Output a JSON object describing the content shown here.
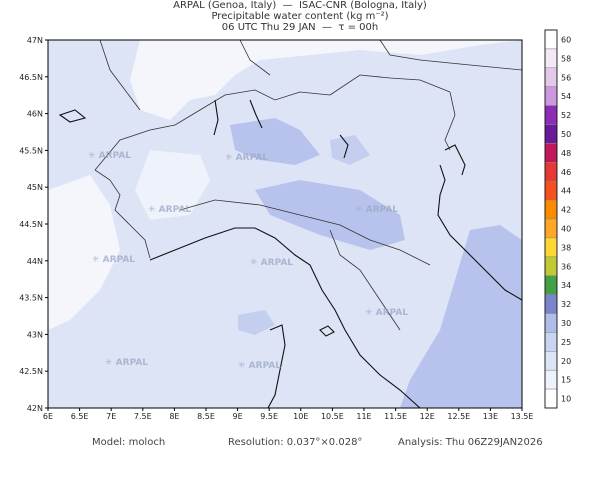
{
  "header": {
    "line1": "ARPAL (Genoa, Italy)  —  ISAC-CNR (Bologna, Italy)",
    "line2": "Precipitable water content (kg m⁻²)",
    "line3": "06 UTC Thu 29 JAN  —  τ = 00h"
  },
  "map": {
    "lat_labels": [
      "47N",
      "46.5N",
      "46N",
      "45.5N",
      "45N",
      "44.5N",
      "44N",
      "43.5N",
      "43N",
      "42.5N",
      "42N"
    ],
    "lon_labels": [
      "6E",
      "6.5E",
      "7E",
      "7.5E",
      "8E",
      "8.5E",
      "9E",
      "9.5E",
      "10E",
      "10.5E",
      "11E",
      "11.5E",
      "12E",
      "12.5E",
      "13E",
      "13.5E"
    ],
    "watermark": "ARPAL",
    "colors": {
      "sea_level_fill": "#dde4f6",
      "light_fill": "#c9d4f2",
      "mid_fill": "#b0bdea",
      "coast": "#111111",
      "border": "#333333"
    }
  },
  "colorbar": {
    "values": [
      "60",
      "58",
      "56",
      "54",
      "52",
      "50",
      "48",
      "46",
      "44",
      "42",
      "40",
      "38",
      "36",
      "34",
      "32",
      "30",
      "25",
      "20",
      "15",
      "10"
    ],
    "colors": [
      "#ffffff",
      "#f3e9f6",
      "#e2c9ec",
      "#cb98dd",
      "#8c2db5",
      "#6a1b9a",
      "#c2185b",
      "#e53935",
      "#f4511e",
      "#fb8c00",
      "#ffa726",
      "#fdd835",
      "#c0ca33",
      "#43a047",
      "#7986cb",
      "#b0bdea",
      "#c9d4f2",
      "#dde4f6",
      "#eef2fb",
      "#ffffff"
    ]
  },
  "footer": {
    "model": "Model: moloch",
    "resolution": "Resolution: 0.037°×0.028°",
    "analysis": "Analysis: Thu 06Z29JAN2026"
  }
}
